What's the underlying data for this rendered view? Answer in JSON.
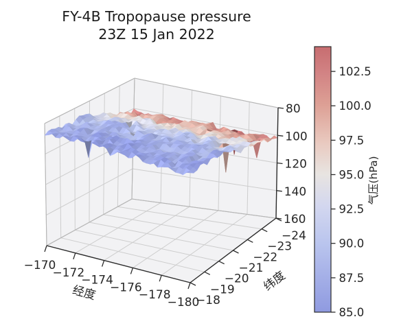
{
  "title": {
    "line1": "FY-4B Tropopause pressure",
    "line2": "23Z 15 Jan 2022"
  },
  "chart_data": {
    "type": "3d_surface",
    "title": "FY-4B Tropopause pressure 23Z 15 Jan 2022",
    "xlabel": "经度",
    "ylabel": "纬度",
    "zlabel": "",
    "colorbar_label": "气压(hPa)",
    "x_range": [
      -170,
      -180
    ],
    "y_range": [
      -18,
      -24
    ],
    "z_range": [
      80,
      160
    ],
    "z_axis_inverted": true,
    "grid": true,
    "legend": "none",
    "colormap": "coolwarm",
    "colormap_stops": [
      {
        "t": 0.0,
        "color": "#8f9ae0"
      },
      {
        "t": 0.13,
        "color": "#a4afe7"
      },
      {
        "t": 0.26,
        "color": "#bac5ee"
      },
      {
        "t": 0.4,
        "color": "#d3d7ef"
      },
      {
        "t": 0.52,
        "color": "#e8e4e1"
      },
      {
        "t": 0.64,
        "color": "#e9c9bf"
      },
      {
        "t": 0.78,
        "color": "#dda095"
      },
      {
        "t": 0.9,
        "color": "#d28384"
      },
      {
        "t": 1.0,
        "color": "#c76d70"
      }
    ],
    "axes": {
      "x": {
        "ticks": [
          {
            "v": -170,
            "label": "−170"
          },
          {
            "v": -172,
            "label": "−172"
          },
          {
            "v": -174,
            "label": "−174"
          },
          {
            "v": -176,
            "label": "−176"
          },
          {
            "v": -178,
            "label": "−178"
          },
          {
            "v": -180,
            "label": "−180"
          }
        ]
      },
      "y": {
        "ticks": [
          {
            "v": -18,
            "label": "−18"
          },
          {
            "v": -19,
            "label": "−19"
          },
          {
            "v": -20,
            "label": "−20"
          },
          {
            "v": -21,
            "label": "−21"
          },
          {
            "v": -22,
            "label": "−22"
          },
          {
            "v": -23,
            "label": "−23"
          },
          {
            "v": -24,
            "label": "−24"
          }
        ]
      },
      "z": {
        "ticks": [
          {
            "v": 80,
            "label": "80"
          },
          {
            "v": 100,
            "label": "100"
          },
          {
            "v": 120,
            "label": "120"
          },
          {
            "v": 140,
            "label": "140"
          },
          {
            "v": 160,
            "label": "160"
          }
        ]
      }
    },
    "colorbar": {
      "range": [
        85.0,
        104.3
      ],
      "ticks": [
        {
          "v": 85.0,
          "label": "85.0"
        },
        {
          "v": 87.5,
          "label": "87.5"
        },
        {
          "v": 90.0,
          "label": "90.0"
        },
        {
          "v": 92.5,
          "label": "92.5"
        },
        {
          "v": 95.0,
          "label": "95.0"
        },
        {
          "v": 97.5,
          "label": "97.5"
        },
        {
          "v": 100.0,
          "label": "100.0"
        },
        {
          "v": 102.5,
          "label": "102.5"
        }
      ]
    },
    "surface": {
      "lon": [
        -170,
        -172,
        -174,
        -176,
        -178,
        -180
      ],
      "lat": [
        -18,
        -19,
        -20,
        -21,
        -22,
        -23,
        -24
      ],
      "pressure_hPa": [
        [
          86.0,
          85.5,
          86.0,
          86.5,
          86.0,
          85.5
        ],
        [
          87.0,
          86.5,
          86.0,
          86.0,
          87.0,
          86.5
        ],
        [
          88.0,
          87.5,
          88.0,
          88.5,
          88.0,
          87.5
        ],
        [
          90.5,
          90.0,
          90.5,
          90.0,
          90.5,
          91.0
        ],
        [
          94.0,
          93.5,
          94.0,
          94.5,
          94.0,
          93.5
        ],
        [
          98.5,
          99.0,
          98.0,
          97.5,
          98.5,
          99.0
        ],
        [
          101.5,
          102.5,
          102.0,
          102.5,
          103.0,
          102.0
        ]
      ]
    }
  },
  "styles": {
    "background": "#ffffff",
    "text_color": "#1a1a1a",
    "grid_color": "#cdcdcd",
    "pane_color": "#f2f2f4",
    "pane_edge_color": "#b5b5b5",
    "axis_color": "#2b2b2b"
  }
}
